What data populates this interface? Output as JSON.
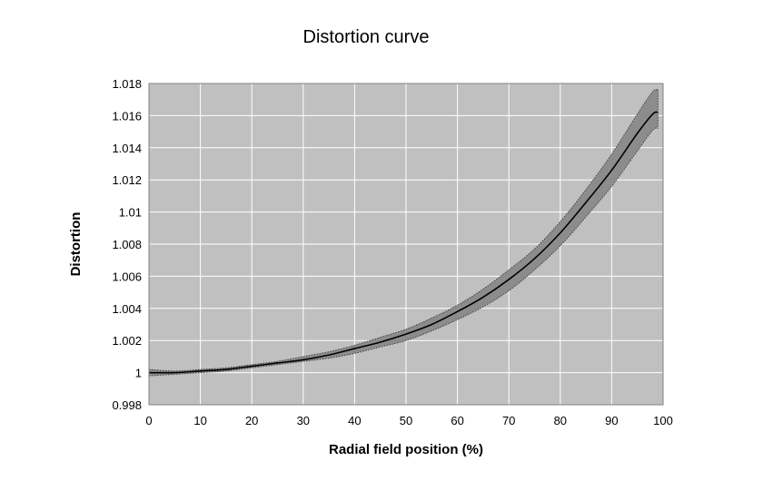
{
  "chart_data": {
    "type": "line",
    "title": "Distortion curve",
    "xlabel": "Radial field position (%)",
    "ylabel": "Distortion",
    "xlim": [
      0,
      100
    ],
    "ylim": [
      0.998,
      1.018
    ],
    "x_ticks": [
      "0",
      "10",
      "20",
      "30",
      "40",
      "50",
      "60",
      "70",
      "80",
      "90",
      "100"
    ],
    "y_ticks": [
      "0.998",
      "1",
      "1.002",
      "1.004",
      "1.006",
      "1.008",
      "1.01",
      "1.012",
      "1.014",
      "1.016",
      "1.018"
    ],
    "grid": true,
    "legend": "none",
    "colors": {
      "plot_background": "#c0c0c0",
      "grid": "#ffffff",
      "band": "#8c8c8c",
      "line": "#000000"
    },
    "series": [
      {
        "x": [
          0,
          5,
          10,
          15,
          20,
          25,
          30,
          35,
          40,
          45,
          50,
          55,
          60,
          65,
          70,
          75,
          80,
          85,
          90,
          95,
          98,
          99
        ],
        "values": [
          1.0,
          1.0,
          1.0001,
          1.0002,
          1.0004,
          1.0006,
          1.0008,
          1.0011,
          1.0015,
          1.0019,
          1.0024,
          1.003,
          1.0038,
          1.0047,
          1.0058,
          1.0071,
          1.0087,
          1.0106,
          1.0126,
          1.0149,
          1.0161,
          1.0162
        ],
        "band_upper": [
          1.0002,
          1.0001,
          1.0002,
          1.0003,
          1.0005,
          1.0007,
          1.001,
          1.0013,
          1.0017,
          1.0022,
          1.0027,
          1.0034,
          1.0042,
          1.0052,
          1.0064,
          1.0077,
          1.0094,
          1.0114,
          1.0136,
          1.0161,
          1.0175,
          1.0176
        ],
        "band_lower": [
          0.9998,
          0.9999,
          1.0,
          1.0001,
          1.0003,
          1.0005,
          1.0007,
          1.0009,
          1.0012,
          1.0016,
          1.002,
          1.0026,
          1.0033,
          1.0041,
          1.0051,
          1.0064,
          1.0079,
          1.0097,
          1.0116,
          1.0138,
          1.0151,
          1.0152
        ]
      }
    ]
  }
}
